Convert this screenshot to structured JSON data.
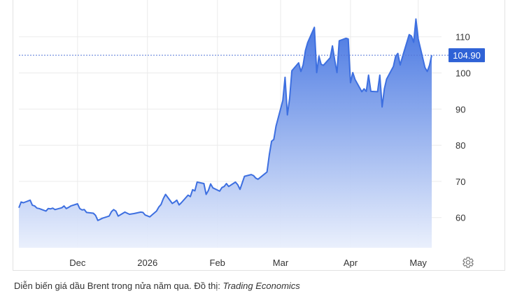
{
  "chart_data": {
    "type": "area",
    "title": "",
    "xlabel": "",
    "ylabel": "",
    "ylim": [
      50,
      115
    ],
    "yticks": [
      60,
      70,
      80,
      90,
      100,
      110
    ],
    "x_tick_labels": [
      "Dec",
      "2026",
      "Feb",
      "Mar",
      "Apr",
      "May"
    ],
    "last_value_label": "104.90",
    "grid": true,
    "colors": {
      "line": "#3d6fe0",
      "fill_top": "#3d6fe0",
      "fill_bottom": "#e9effc",
      "last_label_bg": "#2f62d6",
      "last_label_text": "#ffffff",
      "ref_line": "#5578d8"
    },
    "series": [
      {
        "x": [
          "2025-11-05",
          "2025-11-06",
          "2025-11-07",
          "2025-11-10",
          "2025-11-11",
          "2025-11-12",
          "2025-11-13",
          "2025-11-14",
          "2025-11-17",
          "2025-11-18",
          "2025-11-19",
          "2025-11-20",
          "2025-11-21",
          "2025-11-24",
          "2025-11-25",
          "2025-11-26",
          "2025-11-27",
          "2025-11-28",
          "2025-12-01",
          "2025-12-02",
          "2025-12-03",
          "2025-12-04",
          "2025-12-05",
          "2025-12-08",
          "2025-12-09",
          "2025-12-10",
          "2025-12-11",
          "2025-12-12",
          "2025-12-15",
          "2025-12-16",
          "2025-12-17",
          "2025-12-18",
          "2025-12-19",
          "2025-12-22",
          "2025-12-23",
          "2025-12-24",
          "2025-12-26",
          "2025-12-29",
          "2025-12-30",
          "2025-12-31",
          "2026-01-02",
          "2026-01-05",
          "2026-01-06",
          "2026-01-07",
          "2026-01-08",
          "2026-01-09",
          "2026-01-12",
          "2026-01-13",
          "2026-01-14",
          "2026-01-15",
          "2026-01-16",
          "2026-01-19",
          "2026-01-20",
          "2026-01-21",
          "2026-01-22",
          "2026-01-23",
          "2026-01-26",
          "2026-01-27",
          "2026-01-28",
          "2026-01-29",
          "2026-01-30",
          "2026-02-02",
          "2026-02-03",
          "2026-02-04",
          "2026-02-05",
          "2026-02-06",
          "2026-02-09",
          "2026-02-10",
          "2026-02-11",
          "2026-02-12",
          "2026-02-13",
          "2026-02-16",
          "2026-02-17",
          "2026-02-18",
          "2026-02-19",
          "2026-02-20",
          "2026-02-23",
          "2026-02-24",
          "2026-02-25",
          "2026-02-26",
          "2026-02-27",
          "2026-03-02",
          "2026-03-03",
          "2026-03-04",
          "2026-03-05",
          "2026-03-06",
          "2026-03-09",
          "2026-03-10",
          "2026-03-11",
          "2026-03-12",
          "2026-03-13",
          "2026-03-16",
          "2026-03-17",
          "2026-03-18",
          "2026-03-19",
          "2026-03-20",
          "2026-03-23",
          "2026-03-24",
          "2026-03-25",
          "2026-03-26",
          "2026-03-27",
          "2026-03-30",
          "2026-03-31",
          "2026-04-01",
          "2026-04-02",
          "2026-04-03",
          "2026-04-06",
          "2026-04-07",
          "2026-04-08",
          "2026-04-09",
          "2026-04-10",
          "2026-04-13",
          "2026-04-14",
          "2026-04-15",
          "2026-04-16",
          "2026-04-17",
          "2026-04-20",
          "2026-04-21",
          "2026-04-22",
          "2026-04-23",
          "2026-04-24",
          "2026-04-27",
          "2026-04-28",
          "2026-04-29",
          "2026-04-30",
          "2026-05-01",
          "2026-05-04",
          "2026-05-05",
          "2026-05-06",
          "2026-05-07"
        ],
        "values": [
          62.7,
          64.3,
          64.1,
          64.8,
          63.4,
          63.2,
          62.6,
          62.5,
          61.8,
          62.5,
          62.4,
          62.6,
          62.2,
          62.7,
          63.2,
          62.5,
          62.8,
          63.2,
          63.8,
          62.5,
          62.1,
          62.2,
          61.4,
          61.2,
          60.6,
          59.2,
          59.5,
          59.8,
          60.4,
          61.6,
          62.2,
          61.8,
          60.4,
          61.5,
          61.2,
          60.9,
          61.1,
          61.5,
          61.4,
          60.7,
          60.2,
          61.8,
          62.9,
          63.6,
          65.2,
          66.4,
          63.9,
          64.3,
          64.8,
          63.5,
          64.1,
          66.2,
          65.8,
          67.7,
          67.4,
          69.8,
          69.4,
          66.4,
          67.5,
          69.3,
          68.2,
          67.3,
          68.3,
          68.6,
          69.4,
          68.6,
          69.8,
          69.1,
          67.8,
          69.6,
          71.4,
          71.9,
          71.6,
          70.9,
          70.6,
          71.1,
          72.6,
          77.4,
          81.1,
          81.6,
          85.3,
          92.4,
          98.8,
          88.4,
          92.9,
          100.6,
          102.8,
          100.4,
          102.2,
          106.2,
          108.4,
          112.6,
          100.1,
          104.6,
          102.4,
          102.1,
          104.2,
          107.5,
          103.5,
          100.1,
          108.9,
          109.6,
          109.4,
          97.3,
          100.1,
          98.2,
          94.8,
          95.6,
          94.9,
          99.4,
          94.9,
          94.8,
          99.4,
          90.6,
          95.6,
          98.3,
          101.8,
          104.6,
          105.4,
          102.2,
          104.4,
          110.6,
          110.2,
          108.5,
          114.9,
          109.4,
          101.5,
          100.4,
          102.1,
          104.9
        ]
      }
    ]
  },
  "caption": {
    "prefix": "Diễn biến giá dầu Brent trong nửa năm qua. Đồ thị: ",
    "source": "Trading Economics"
  },
  "settings_icon": "gear-icon"
}
